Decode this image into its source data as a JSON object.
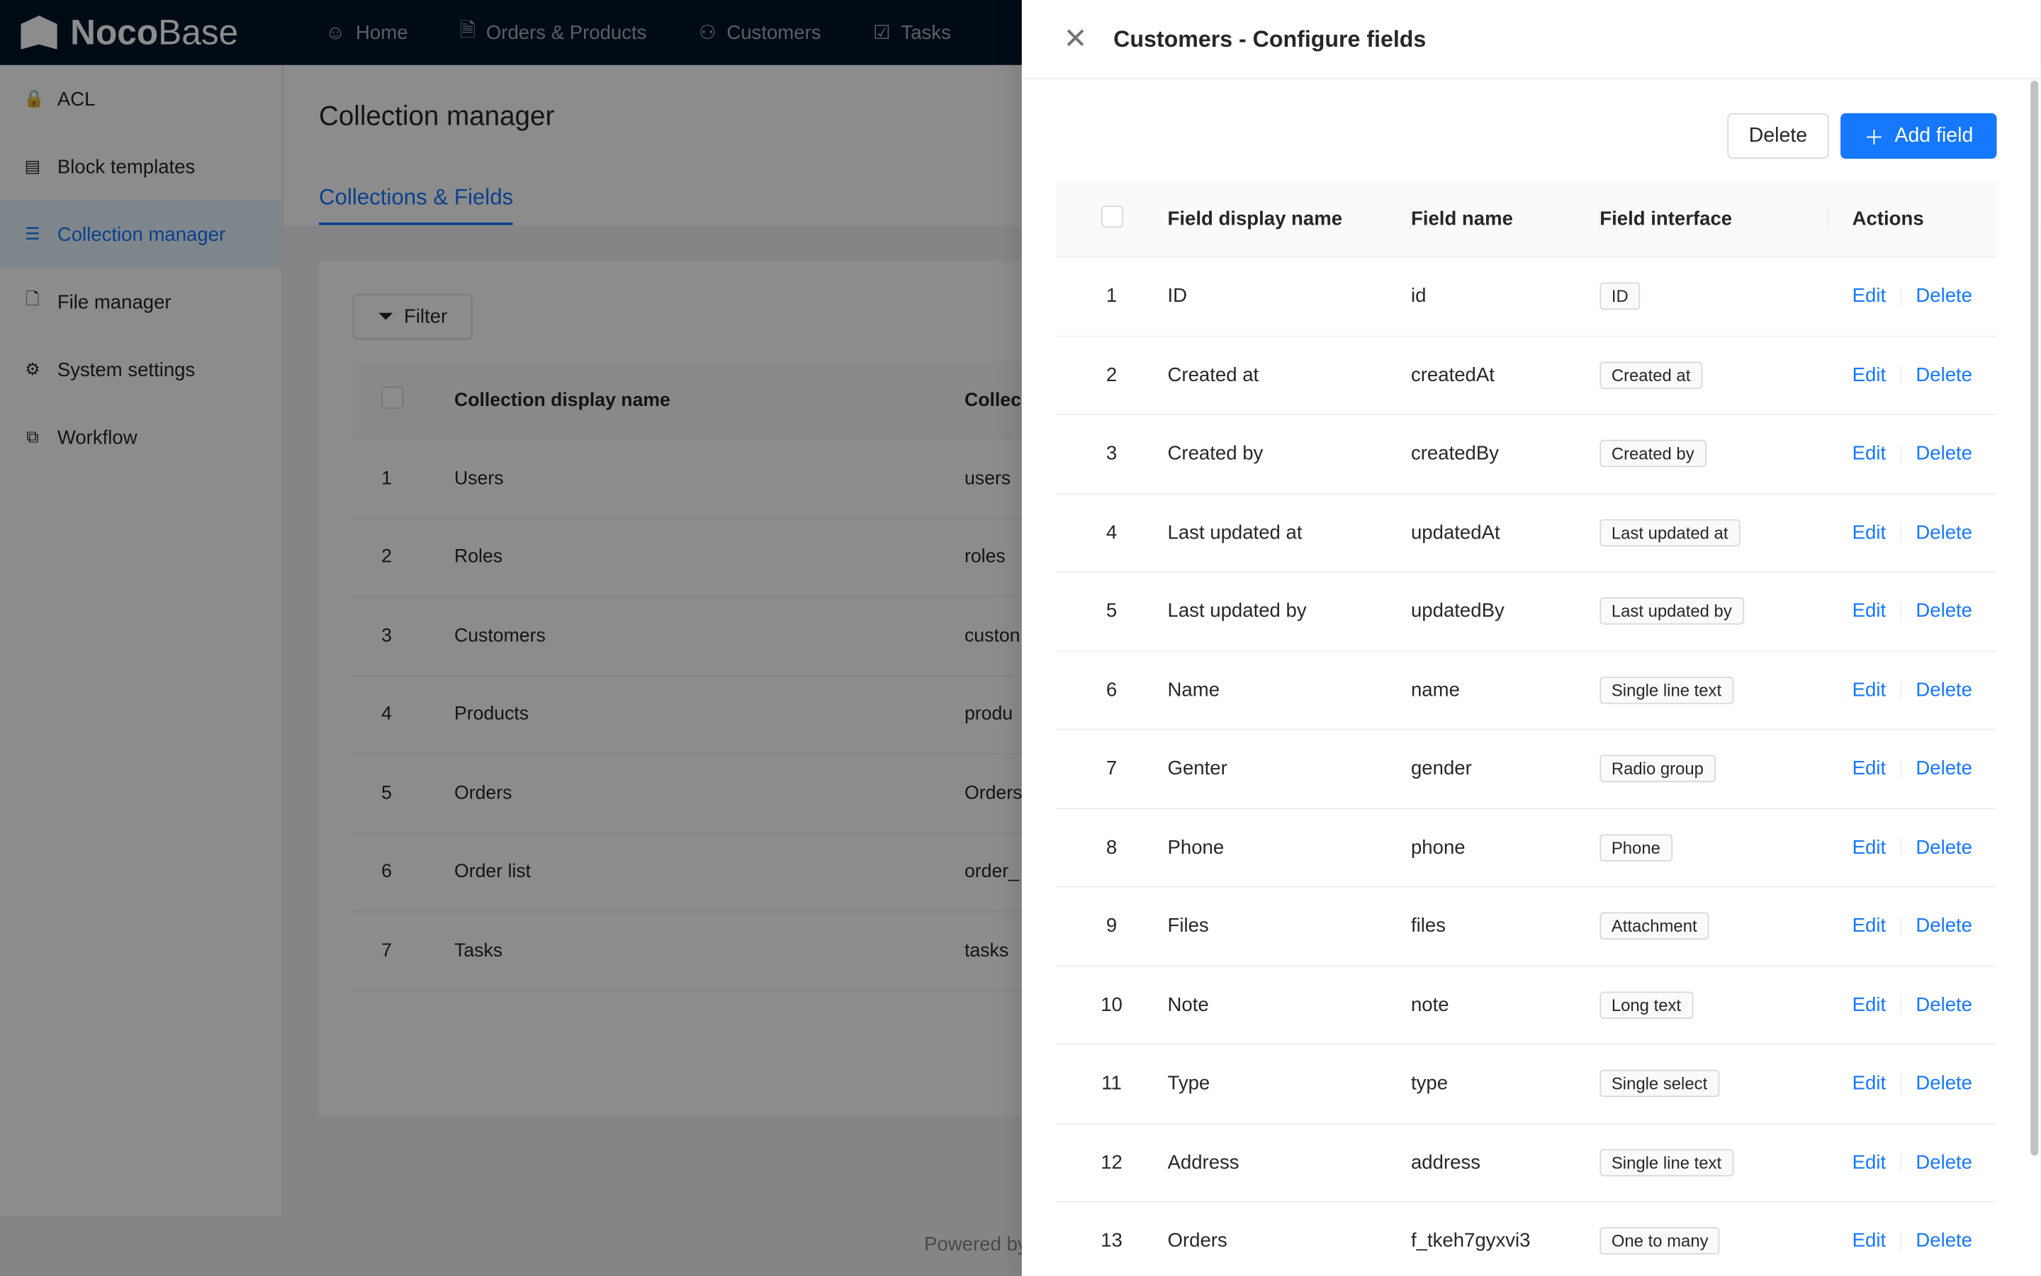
{
  "app": {
    "logo_bold": "Noco",
    "logo_light": "Base"
  },
  "nav": [
    {
      "label": "Home",
      "icon": "smile-icon"
    },
    {
      "label": "Orders & Products",
      "icon": "file-check-icon"
    },
    {
      "label": "Customers",
      "icon": "users-icon"
    },
    {
      "label": "Tasks",
      "icon": "check-square-icon"
    }
  ],
  "sidebar": [
    {
      "label": "ACL",
      "icon": "🔒"
    },
    {
      "label": "Block templates",
      "icon": "▤"
    },
    {
      "label": "Collection manager",
      "icon": "☰",
      "selected": true
    },
    {
      "label": "File manager",
      "icon": "🗋"
    },
    {
      "label": "System settings",
      "icon": "⚙"
    },
    {
      "label": "Workflow",
      "icon": "⧉"
    }
  ],
  "page": {
    "title": "Collection manager",
    "tab": "Collections & Fields",
    "filter": "Filter",
    "footer": "Powered by"
  },
  "collections": {
    "headers": [
      "Collection display name",
      "Collec"
    ],
    "rows": [
      [
        "1",
        "Users",
        "users"
      ],
      [
        "2",
        "Roles",
        "roles"
      ],
      [
        "3",
        "Customers",
        "custon"
      ],
      [
        "4",
        "Products",
        "produ"
      ],
      [
        "5",
        "Orders",
        "Orders"
      ],
      [
        "6",
        "Order list",
        "order_"
      ],
      [
        "7",
        "Tasks",
        "tasks"
      ]
    ]
  },
  "drawer": {
    "title": "Customers - Configure fields",
    "delete": "Delete",
    "add": "Add field",
    "headers": [
      "Field display name",
      "Field name",
      "Field interface",
      "Actions"
    ],
    "edit": "Edit",
    "del": "Delete",
    "rows": [
      [
        "1",
        "ID",
        "id",
        "ID"
      ],
      [
        "2",
        "Created at",
        "createdAt",
        "Created at"
      ],
      [
        "3",
        "Created by",
        "createdBy",
        "Created by"
      ],
      [
        "4",
        "Last updated at",
        "updatedAt",
        "Last updated at"
      ],
      [
        "5",
        "Last updated by",
        "updatedBy",
        "Last updated by"
      ],
      [
        "6",
        "Name",
        "name",
        "Single line text"
      ],
      [
        "7",
        "Genter",
        "gender",
        "Radio group"
      ],
      [
        "8",
        "Phone",
        "phone",
        "Phone"
      ],
      [
        "9",
        "Files",
        "files",
        "Attachment"
      ],
      [
        "10",
        "Note",
        "note",
        "Long text"
      ],
      [
        "11",
        "Type",
        "type",
        "Single select"
      ],
      [
        "12",
        "Address",
        "address",
        "Single line text"
      ],
      [
        "13",
        "Orders",
        "f_tkeh7gyxvi3",
        "One to many"
      ]
    ]
  },
  "colors": {
    "accent": "#1677ff",
    "header": "#001529"
  }
}
